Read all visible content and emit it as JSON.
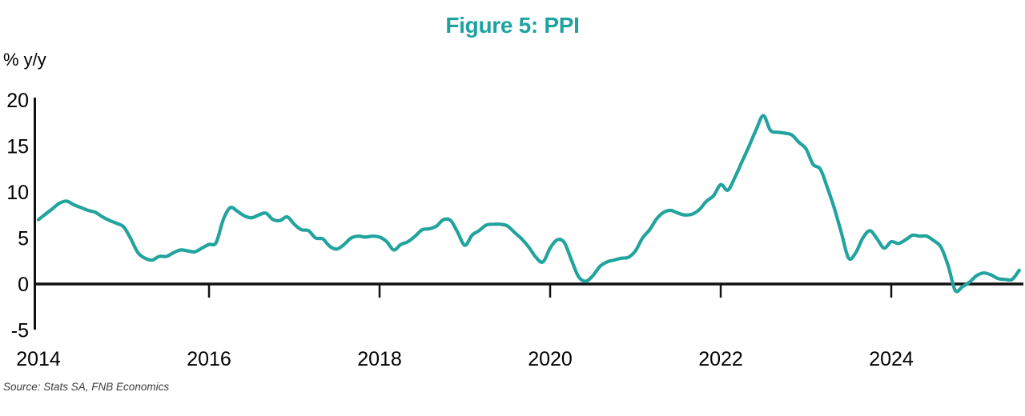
{
  "source_note": "Source: Stats SA, FNB Economics",
  "accent_teal": "#21A39E",
  "chart_data": {
    "type": "line",
    "title": "Figure 5: PPI",
    "unit": "% y/y",
    "xlabel": "",
    "ylabel": "% y/y",
    "ylim": [
      -5,
      20
    ],
    "grid": false,
    "legend": "none",
    "frequency": "monthly",
    "x_start": "2014-01",
    "x_end": "2025-07",
    "x_tick_labels": [
      "2014",
      "2016",
      "2018",
      "2020",
      "2022",
      "2024"
    ],
    "y_ticks": [
      20,
      15,
      10,
      5,
      0,
      -5
    ],
    "line_color": "#21A39E",
    "series": [
      {
        "name": "PPI % y/y",
        "values": [
          7.0,
          7.6,
          8.2,
          8.8,
          9.0,
          8.6,
          8.3,
          8.0,
          7.8,
          7.3,
          6.9,
          6.6,
          6.2,
          4.9,
          3.4,
          2.8,
          2.6,
          3.0,
          3.0,
          3.4,
          3.7,
          3.6,
          3.5,
          3.9,
          4.3,
          4.5,
          7.0,
          8.3,
          7.9,
          7.4,
          7.2,
          7.5,
          7.7,
          7.0,
          6.9,
          7.3,
          6.5,
          5.9,
          5.8,
          5.0,
          4.9,
          4.1,
          3.8,
          4.3,
          5.0,
          5.2,
          5.1,
          5.2,
          5.1,
          4.6,
          3.7,
          4.3,
          4.6,
          5.2,
          5.9,
          6.0,
          6.3,
          7.0,
          6.9,
          5.6,
          4.2,
          5.3,
          5.8,
          6.4,
          6.5,
          6.5,
          6.3,
          5.6,
          4.9,
          4.0,
          2.9,
          2.4,
          3.9,
          4.8,
          4.5,
          2.6,
          0.8,
          0.3,
          0.9,
          1.9,
          2.4,
          2.6,
          2.8,
          2.9,
          3.6,
          5.0,
          5.9,
          7.1,
          7.8,
          8.0,
          7.7,
          7.5,
          7.6,
          8.1,
          9.0,
          9.6,
          10.8,
          10.2,
          11.6,
          13.3,
          15.0,
          16.8,
          18.3,
          16.7,
          16.5,
          16.4,
          16.2,
          15.4,
          14.7,
          13.0,
          12.5,
          10.5,
          8.2,
          5.5,
          2.8,
          3.4,
          5.0,
          5.8,
          4.9,
          3.9,
          4.6,
          4.4,
          4.8,
          5.3,
          5.2,
          5.2,
          4.7,
          4.0,
          2.0,
          -0.7,
          -0.3,
          0.2,
          0.9,
          1.2,
          1.0,
          0.6,
          0.5,
          0.5,
          1.5
        ]
      }
    ]
  }
}
